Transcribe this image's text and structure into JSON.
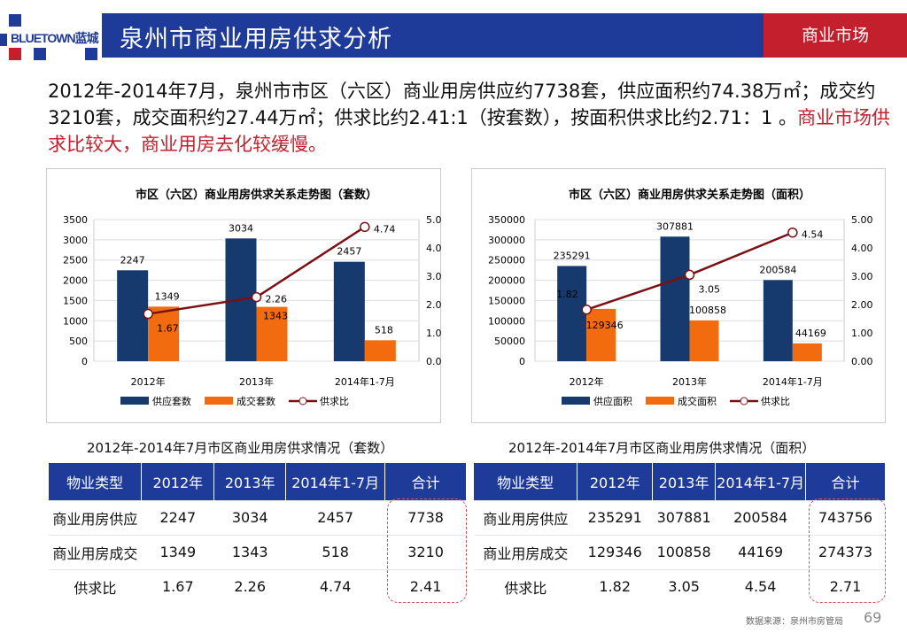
{
  "header": {
    "logo": "BLUETOWN蓝城",
    "title": "泉州市商业用房供求分析",
    "section": "商业市场"
  },
  "summary": {
    "text": "2012年-2014年7月，泉州市市区（六区）商业用房供应约7738套，供应面积约74.38万㎡；成交约3210套，成交面积约27.44万㎡；供求比约2.41:1（按套数），按面积供求比约2.71：1 。",
    "highlight": "商业市场供求比较大，商业用房去化较缓慢。"
  },
  "colors": {
    "supply": "#173a6e",
    "deal": "#f26b0f",
    "ratio": "#7a1014",
    "header_blue": "#1f3b9a",
    "accent_red": "#c41f2d"
  },
  "chart_data": [
    {
      "type": "bar",
      "title": "市区（六区）商业用房供求关系走势图（套数）",
      "categories": [
        "2012年",
        "2013年",
        "2014年1-7月"
      ],
      "series": [
        {
          "name": "供应套数",
          "values": [
            2247,
            3034,
            2457
          ]
        },
        {
          "name": "成交套数",
          "values": [
            1349,
            1343,
            518
          ]
        },
        {
          "name": "供求比",
          "type": "line",
          "axis": "right",
          "values": [
            1.67,
            2.26,
            4.74
          ]
        }
      ],
      "ylim": [
        0,
        3500
      ],
      "yticks": [
        "0",
        "500",
        "1000",
        "1500",
        "2000",
        "2500",
        "3000",
        "3500"
      ],
      "y2lim": [
        0,
        5
      ],
      "y2ticks": [
        "0.00",
        "1.00",
        "2.00",
        "3.00",
        "4.00",
        "5.00"
      ],
      "grid": true,
      "legend": "bottom"
    },
    {
      "type": "bar",
      "title": "市区（六区）商业用房供求关系走势图（面积）",
      "categories": [
        "2012年",
        "2013年",
        "2014年1-7月"
      ],
      "series": [
        {
          "name": "供应面积",
          "values": [
            235291,
            307881,
            200584
          ]
        },
        {
          "name": "成交面积",
          "values": [
            129346,
            100858,
            44169
          ]
        },
        {
          "name": "供求比",
          "type": "line",
          "axis": "right",
          "values": [
            1.82,
            3.05,
            4.54
          ]
        }
      ],
      "ylim": [
        0,
        350000
      ],
      "yticks": [
        "0",
        "50000",
        "100000",
        "150000",
        "200000",
        "250000",
        "300000",
        "350000"
      ],
      "y2lim": [
        0,
        5
      ],
      "y2ticks": [
        "0.00",
        "1.00",
        "2.00",
        "3.00",
        "4.00",
        "5.00"
      ],
      "grid": true,
      "legend": "bottom"
    }
  ],
  "tables": [
    {
      "title": "2012年-2014年7月市区商业用房供求情况（套数）",
      "headers": [
        "物业类型",
        "2012年",
        "2013年",
        "2014年1-7月",
        "合计"
      ],
      "rows": [
        [
          "商业用房供应",
          "2247",
          "3034",
          "2457",
          "7738"
        ],
        [
          "商业用房成交",
          "1349",
          "1343",
          "518",
          "3210"
        ],
        [
          "供求比",
          "1.67",
          "2.26",
          "4.74",
          "2.41"
        ]
      ]
    },
    {
      "title": "2012年-2014年7月市区商业用房供求情况（面积）",
      "headers": [
        "物业类型",
        "2012年",
        "2013年",
        "2014年1-7月",
        "合计"
      ],
      "rows": [
        [
          "商业用房供应",
          "235291",
          "307881",
          "200584",
          "743756"
        ],
        [
          "商业用房成交",
          "129346",
          "100858",
          "44169",
          "274373"
        ],
        [
          "供求比",
          "1.82",
          "3.05",
          "4.54",
          "2.71"
        ]
      ]
    }
  ],
  "footer": {
    "source": "数据来源：泉州市房管局",
    "page": "69"
  }
}
